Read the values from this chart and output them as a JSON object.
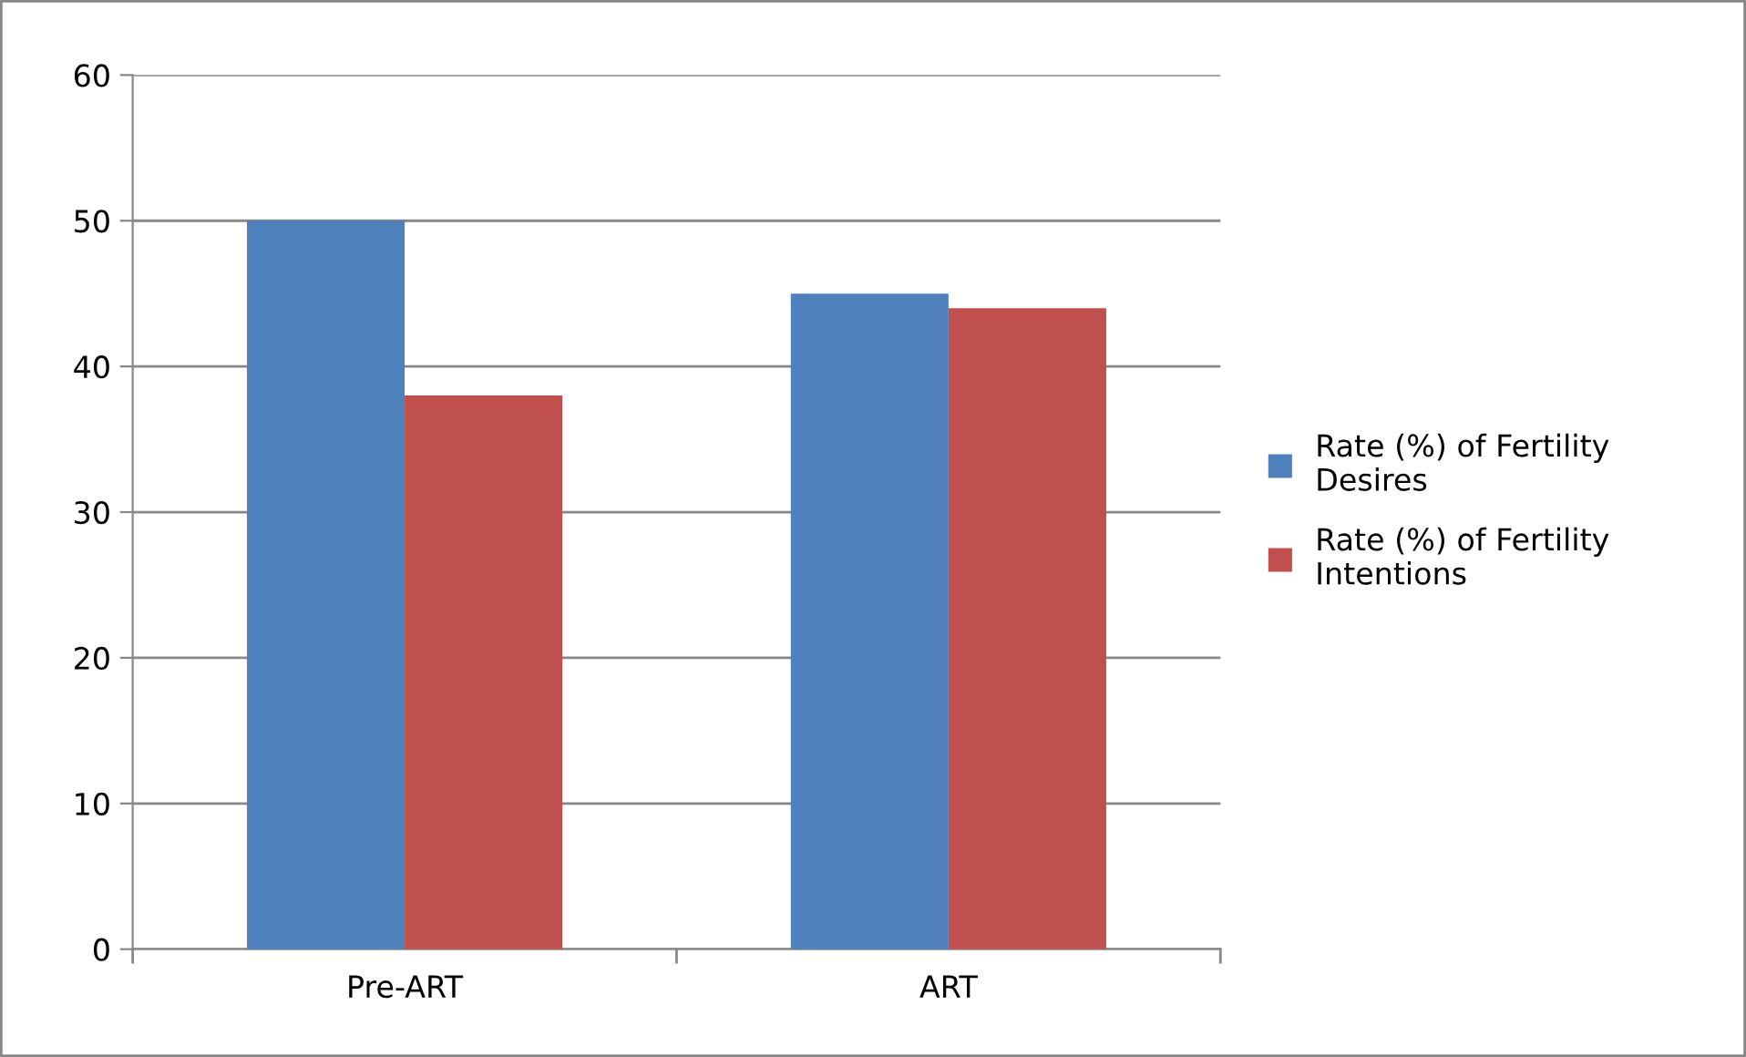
{
  "chart_data": {
    "type": "bar",
    "categories": [
      "Pre-ART",
      "ART"
    ],
    "series": [
      {
        "name": "Rate (%) of Fertility Desires",
        "color": "#4f81bd",
        "values": [
          50,
          45
        ]
      },
      {
        "name": "Rate (%) of Fertility Intentions",
        "color": "#c0504d",
        "values": [
          38,
          44
        ]
      }
    ],
    "ylim": [
      0,
      60
    ],
    "yticks": [
      0,
      10,
      20,
      30,
      40,
      50,
      60
    ],
    "grid": "y",
    "legend": "right"
  }
}
